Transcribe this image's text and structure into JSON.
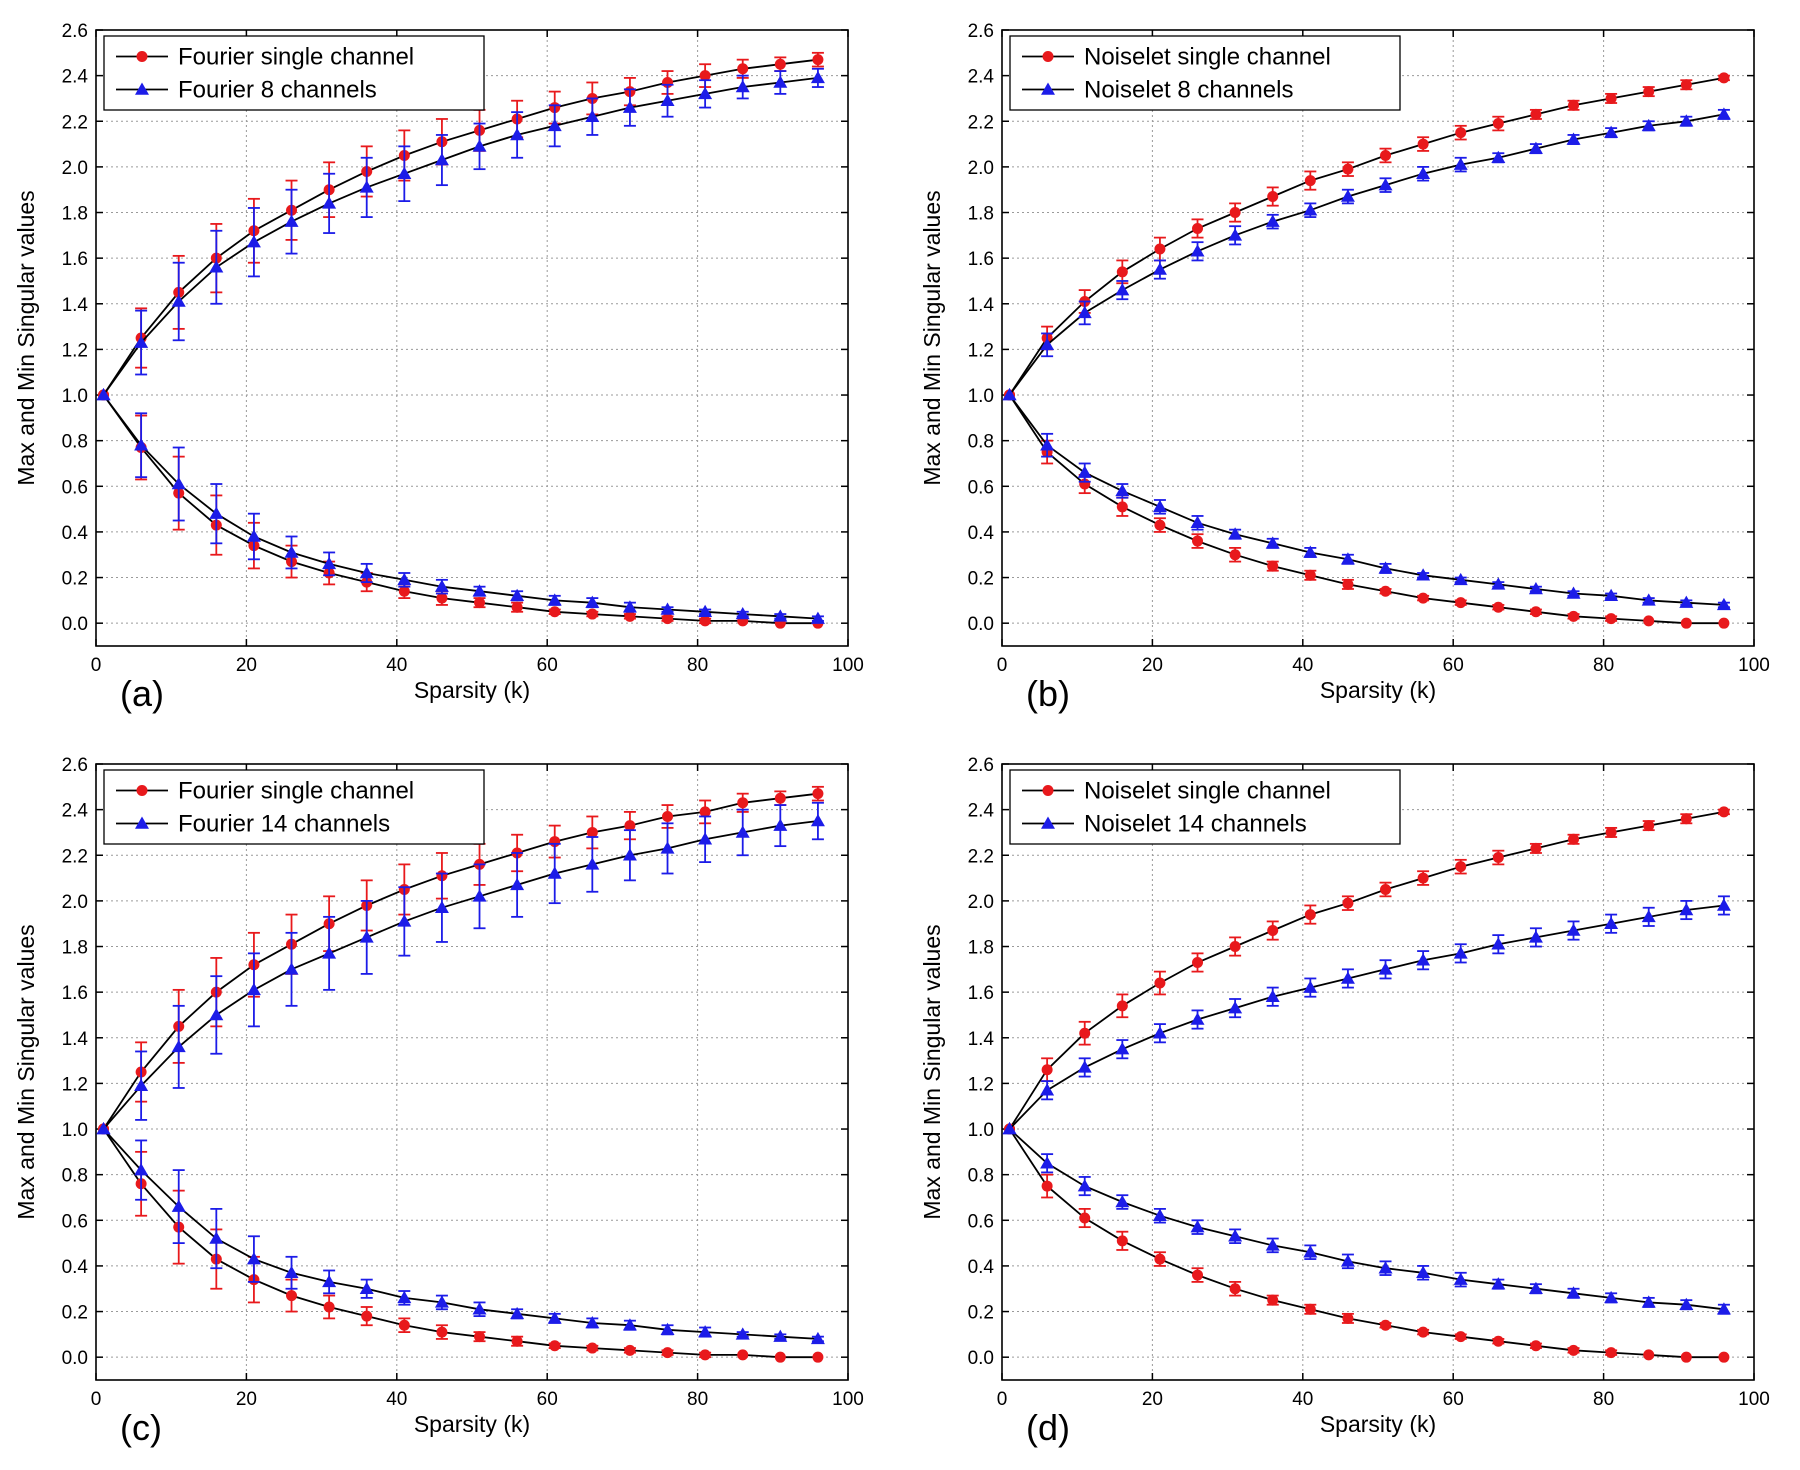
{
  "chart_data": [
    {
      "type": "line",
      "panel_label": "(a)",
      "xlabel": "Sparsity (k)",
      "ylabel": "Max and Min Singular values",
      "xlim": [
        0,
        100
      ],
      "ylim": [
        -0.1,
        2.6
      ],
      "xticks": [
        "0",
        "20",
        "40",
        "60",
        "80",
        "100"
      ],
      "yticks": [
        "0.0",
        "0.2",
        "0.4",
        "0.6",
        "0.8",
        "1.0",
        "1.2",
        "1.4",
        "1.6",
        "1.8",
        "2.0",
        "2.2",
        "2.4",
        "2.6"
      ],
      "grid": true,
      "legend_position": "top-left",
      "x": [
        1,
        6,
        11,
        16,
        21,
        26,
        31,
        36,
        41,
        46,
        51,
        56,
        61,
        66,
        71,
        76,
        81,
        86,
        91,
        96
      ],
      "series": [
        {
          "name": "Fourier single channel",
          "color": "#e8191c",
          "marker": "circle",
          "legend": true,
          "max": [
            1.0,
            1.25,
            1.45,
            1.6,
            1.72,
            1.81,
            1.9,
            1.98,
            2.05,
            2.11,
            2.16,
            2.21,
            2.26,
            2.3,
            2.33,
            2.37,
            2.4,
            2.43,
            2.45,
            2.47
          ],
          "max_err": [
            0.0,
            0.13,
            0.16,
            0.15,
            0.14,
            0.13,
            0.12,
            0.11,
            0.11,
            0.1,
            0.09,
            0.08,
            0.07,
            0.07,
            0.06,
            0.05,
            0.05,
            0.04,
            0.03,
            0.03
          ],
          "min": [
            1.0,
            0.77,
            0.57,
            0.43,
            0.34,
            0.27,
            0.22,
            0.18,
            0.14,
            0.11,
            0.09,
            0.07,
            0.05,
            0.04,
            0.03,
            0.02,
            0.01,
            0.01,
            0.0,
            0.0
          ],
          "min_err": [
            0.0,
            0.14,
            0.16,
            0.13,
            0.1,
            0.07,
            0.05,
            0.04,
            0.03,
            0.03,
            0.02,
            0.02,
            0.01,
            0.01,
            0.01,
            0.01,
            0.01,
            0.0,
            0.0,
            0.0
          ]
        },
        {
          "name": "Fourier 8 channels",
          "color": "#1c1ce8",
          "marker": "triangle",
          "legend": true,
          "max": [
            1.0,
            1.23,
            1.41,
            1.56,
            1.67,
            1.76,
            1.84,
            1.91,
            1.97,
            2.03,
            2.09,
            2.14,
            2.18,
            2.22,
            2.26,
            2.29,
            2.32,
            2.35,
            2.37,
            2.39
          ],
          "max_err": [
            0.0,
            0.14,
            0.17,
            0.16,
            0.15,
            0.14,
            0.13,
            0.13,
            0.12,
            0.11,
            0.1,
            0.1,
            0.09,
            0.08,
            0.08,
            0.07,
            0.06,
            0.05,
            0.05,
            0.04
          ],
          "min": [
            1.0,
            0.78,
            0.61,
            0.48,
            0.38,
            0.31,
            0.26,
            0.22,
            0.19,
            0.16,
            0.14,
            0.12,
            0.1,
            0.09,
            0.07,
            0.06,
            0.05,
            0.04,
            0.03,
            0.02
          ],
          "min_err": [
            0.0,
            0.14,
            0.16,
            0.13,
            0.1,
            0.07,
            0.05,
            0.04,
            0.03,
            0.03,
            0.02,
            0.02,
            0.02,
            0.02,
            0.02,
            0.01,
            0.01,
            0.01,
            0.01,
            0.01
          ]
        }
      ]
    },
    {
      "type": "line",
      "panel_label": "(b)",
      "xlabel": "Sparsity (k)",
      "ylabel": "Max and Min Singular values",
      "xlim": [
        0,
        100
      ],
      "ylim": [
        -0.1,
        2.6
      ],
      "xticks": [
        "0",
        "20",
        "40",
        "60",
        "80",
        "100"
      ],
      "yticks": [
        "0.0",
        "0.2",
        "0.4",
        "0.6",
        "0.8",
        "1.0",
        "1.2",
        "1.4",
        "1.6",
        "1.8",
        "2.0",
        "2.2",
        "2.4",
        "2.6"
      ],
      "grid": true,
      "legend_position": "top-left",
      "x": [
        1,
        6,
        11,
        16,
        21,
        26,
        31,
        36,
        41,
        46,
        51,
        56,
        61,
        66,
        71,
        76,
        81,
        86,
        91,
        96
      ],
      "series": [
        {
          "name": "Noiselet single channel",
          "color": "#e8191c",
          "marker": "circle",
          "legend": true,
          "max": [
            1.0,
            1.25,
            1.41,
            1.54,
            1.64,
            1.73,
            1.8,
            1.87,
            1.94,
            1.99,
            2.05,
            2.1,
            2.15,
            2.19,
            2.23,
            2.27,
            2.3,
            2.33,
            2.36,
            2.39
          ],
          "max_err": [
            0.0,
            0.05,
            0.05,
            0.05,
            0.05,
            0.04,
            0.04,
            0.04,
            0.04,
            0.03,
            0.03,
            0.03,
            0.03,
            0.03,
            0.02,
            0.02,
            0.02,
            0.02,
            0.02,
            0.01
          ],
          "min": [
            1.0,
            0.75,
            0.61,
            0.51,
            0.43,
            0.36,
            0.3,
            0.25,
            0.21,
            0.17,
            0.14,
            0.11,
            0.09,
            0.07,
            0.05,
            0.03,
            0.02,
            0.01,
            0.0,
            0.0
          ],
          "min_err": [
            0.0,
            0.05,
            0.04,
            0.04,
            0.03,
            0.03,
            0.03,
            0.02,
            0.02,
            0.02,
            0.01,
            0.01,
            0.01,
            0.01,
            0.01,
            0.01,
            0.01,
            0.0,
            0.0,
            0.0
          ]
        },
        {
          "name": "Noiselet 8 channels",
          "color": "#1c1ce8",
          "marker": "triangle",
          "legend": true,
          "max": [
            1.0,
            1.22,
            1.36,
            1.46,
            1.55,
            1.63,
            1.7,
            1.76,
            1.81,
            1.87,
            1.92,
            1.97,
            2.01,
            2.04,
            2.08,
            2.12,
            2.15,
            2.18,
            2.2,
            2.23
          ],
          "max_err": [
            0.0,
            0.05,
            0.05,
            0.04,
            0.04,
            0.04,
            0.04,
            0.03,
            0.03,
            0.03,
            0.03,
            0.03,
            0.03,
            0.02,
            0.02,
            0.02,
            0.02,
            0.02,
            0.02,
            0.02
          ],
          "min": [
            1.0,
            0.78,
            0.66,
            0.58,
            0.51,
            0.44,
            0.39,
            0.35,
            0.31,
            0.28,
            0.24,
            0.21,
            0.19,
            0.17,
            0.15,
            0.13,
            0.12,
            0.1,
            0.09,
            0.08
          ],
          "min_err": [
            0.0,
            0.05,
            0.04,
            0.03,
            0.03,
            0.03,
            0.02,
            0.02,
            0.02,
            0.02,
            0.02,
            0.01,
            0.01,
            0.01,
            0.01,
            0.01,
            0.01,
            0.01,
            0.01,
            0.01
          ]
        }
      ]
    },
    {
      "type": "line",
      "panel_label": "(c)",
      "xlabel": "Sparsity (k)",
      "ylabel": "Max and Min Singular values",
      "xlim": [
        0,
        100
      ],
      "ylim": [
        -0.1,
        2.6
      ],
      "xticks": [
        "0",
        "20",
        "40",
        "60",
        "80",
        "100"
      ],
      "yticks": [
        "0.0",
        "0.2",
        "0.4",
        "0.6",
        "0.8",
        "1.0",
        "1.2",
        "1.4",
        "1.6",
        "1.8",
        "2.0",
        "2.2",
        "2.4",
        "2.6"
      ],
      "grid": true,
      "legend_position": "top-left",
      "x": [
        1,
        6,
        11,
        16,
        21,
        26,
        31,
        36,
        41,
        46,
        51,
        56,
        61,
        66,
        71,
        76,
        81,
        86,
        91,
        96
      ],
      "series": [
        {
          "name": "Fourier single channel",
          "color": "#e8191c",
          "marker": "circle",
          "legend": true,
          "max": [
            1.0,
            1.25,
            1.45,
            1.6,
            1.72,
            1.81,
            1.9,
            1.98,
            2.05,
            2.11,
            2.16,
            2.21,
            2.26,
            2.3,
            2.33,
            2.37,
            2.39,
            2.43,
            2.45,
            2.47
          ],
          "max_err": [
            0.0,
            0.13,
            0.16,
            0.15,
            0.14,
            0.13,
            0.12,
            0.11,
            0.11,
            0.1,
            0.09,
            0.08,
            0.07,
            0.07,
            0.06,
            0.05,
            0.05,
            0.04,
            0.03,
            0.03
          ],
          "min": [
            1.0,
            0.76,
            0.57,
            0.43,
            0.34,
            0.27,
            0.22,
            0.18,
            0.14,
            0.11,
            0.09,
            0.07,
            0.05,
            0.04,
            0.03,
            0.02,
            0.01,
            0.01,
            0.0,
            0.0
          ],
          "min_err": [
            0.0,
            0.14,
            0.16,
            0.13,
            0.1,
            0.07,
            0.05,
            0.04,
            0.03,
            0.03,
            0.02,
            0.02,
            0.01,
            0.01,
            0.01,
            0.01,
            0.01,
            0.0,
            0.0,
            0.0
          ]
        },
        {
          "name": "Fourier 14 channels",
          "color": "#1c1ce8",
          "marker": "triangle",
          "legend": true,
          "max": [
            1.0,
            1.19,
            1.36,
            1.5,
            1.61,
            1.7,
            1.77,
            1.84,
            1.91,
            1.97,
            2.02,
            2.07,
            2.12,
            2.16,
            2.2,
            2.23,
            2.27,
            2.3,
            2.33,
            2.35
          ],
          "max_err": [
            0.0,
            0.15,
            0.18,
            0.17,
            0.16,
            0.16,
            0.16,
            0.16,
            0.15,
            0.15,
            0.14,
            0.14,
            0.13,
            0.12,
            0.11,
            0.11,
            0.1,
            0.1,
            0.09,
            0.08
          ],
          "min": [
            1.0,
            0.82,
            0.66,
            0.52,
            0.43,
            0.37,
            0.33,
            0.3,
            0.26,
            0.24,
            0.21,
            0.19,
            0.17,
            0.15,
            0.14,
            0.12,
            0.11,
            0.1,
            0.09,
            0.08
          ],
          "min_err": [
            0.0,
            0.13,
            0.16,
            0.13,
            0.1,
            0.07,
            0.05,
            0.04,
            0.03,
            0.03,
            0.03,
            0.02,
            0.02,
            0.02,
            0.02,
            0.02,
            0.02,
            0.01,
            0.01,
            0.01
          ]
        }
      ]
    },
    {
      "type": "line",
      "panel_label": "(d)",
      "xlabel": "Sparsity (k)",
      "ylabel": "Max and Min Singular values",
      "xlim": [
        0,
        100
      ],
      "ylim": [
        -0.1,
        2.6
      ],
      "xticks": [
        "0",
        "20",
        "40",
        "60",
        "80",
        "100"
      ],
      "yticks": [
        "0.0",
        "0.2",
        "0.4",
        "0.6",
        "0.8",
        "1.0",
        "1.2",
        "1.4",
        "1.6",
        "1.8",
        "2.0",
        "2.2",
        "2.4",
        "2.6"
      ],
      "grid": true,
      "legend_position": "top-left",
      "x": [
        1,
        6,
        11,
        16,
        21,
        26,
        31,
        36,
        41,
        46,
        51,
        56,
        61,
        66,
        71,
        76,
        81,
        86,
        91,
        96
      ],
      "series": [
        {
          "name": "Noiselet single channel",
          "color": "#e8191c",
          "marker": "circle",
          "legend": true,
          "max": [
            1.0,
            1.26,
            1.42,
            1.54,
            1.64,
            1.73,
            1.8,
            1.87,
            1.94,
            1.99,
            2.05,
            2.1,
            2.15,
            2.19,
            2.23,
            2.27,
            2.3,
            2.33,
            2.36,
            2.39
          ],
          "max_err": [
            0.0,
            0.05,
            0.05,
            0.05,
            0.05,
            0.04,
            0.04,
            0.04,
            0.04,
            0.03,
            0.03,
            0.03,
            0.03,
            0.03,
            0.02,
            0.02,
            0.02,
            0.02,
            0.02,
            0.01
          ],
          "min": [
            1.0,
            0.75,
            0.61,
            0.51,
            0.43,
            0.36,
            0.3,
            0.25,
            0.21,
            0.17,
            0.14,
            0.11,
            0.09,
            0.07,
            0.05,
            0.03,
            0.02,
            0.01,
            0.0,
            0.0
          ],
          "min_err": [
            0.0,
            0.05,
            0.04,
            0.04,
            0.03,
            0.03,
            0.03,
            0.02,
            0.02,
            0.02,
            0.01,
            0.01,
            0.01,
            0.01,
            0.01,
            0.01,
            0.01,
            0.0,
            0.0,
            0.0
          ]
        },
        {
          "name": "Noiselet 14 channels",
          "color": "#1c1ce8",
          "marker": "triangle",
          "legend": true,
          "max": [
            1.0,
            1.17,
            1.27,
            1.35,
            1.42,
            1.48,
            1.53,
            1.58,
            1.62,
            1.66,
            1.7,
            1.74,
            1.77,
            1.81,
            1.84,
            1.87,
            1.9,
            1.93,
            1.96,
            1.98
          ],
          "max_err": [
            0.0,
            0.04,
            0.04,
            0.04,
            0.04,
            0.04,
            0.04,
            0.04,
            0.04,
            0.04,
            0.04,
            0.04,
            0.04,
            0.04,
            0.04,
            0.04,
            0.04,
            0.04,
            0.04,
            0.04
          ],
          "min": [
            1.0,
            0.85,
            0.75,
            0.68,
            0.62,
            0.57,
            0.53,
            0.49,
            0.46,
            0.42,
            0.39,
            0.37,
            0.34,
            0.32,
            0.3,
            0.28,
            0.26,
            0.24,
            0.23,
            0.21
          ],
          "min_err": [
            0.0,
            0.04,
            0.04,
            0.03,
            0.03,
            0.03,
            0.03,
            0.03,
            0.03,
            0.03,
            0.03,
            0.03,
            0.03,
            0.02,
            0.02,
            0.02,
            0.02,
            0.02,
            0.02,
            0.02
          ]
        }
      ]
    }
  ]
}
